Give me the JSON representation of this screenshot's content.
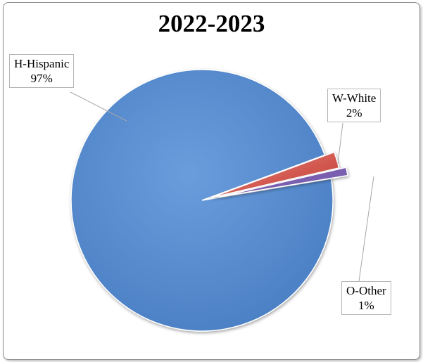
{
  "chart_data": {
    "type": "pie",
    "title": "2022-2023",
    "slices": [
      {
        "label": "H-Hispanic",
        "value": 97,
        "display": "97%",
        "color": "#5b8fd2"
      },
      {
        "label": "W-White",
        "value": 2,
        "display": "2%",
        "color": "#d9534f"
      },
      {
        "label": "O-Other",
        "value": 1,
        "display": "1%",
        "color": "#7a5fb0"
      }
    ],
    "data_labels": "outside-with-leader-lines",
    "legend": "none"
  }
}
